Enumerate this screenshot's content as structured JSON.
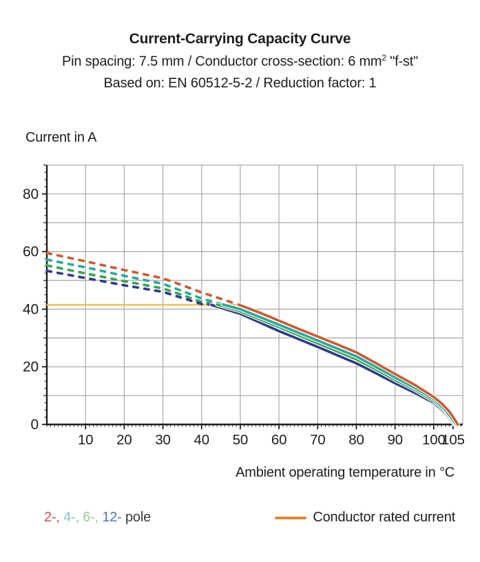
{
  "header": {
    "title": "Current-Carrying Capacity Curve",
    "subtitle_prefix": "Pin spacing: 7.5 mm / Conductor cross-section: 6 mm",
    "subtitle_sup": "2",
    "subtitle_suffix": " \"f-st\"",
    "basis": "Based on: EN 60512-5-2 / Reduction factor: 1"
  },
  "chart_data": {
    "type": "line",
    "title": "Current-Carrying Capacity Curve",
    "xlabel": "Ambient operating temperature in °C",
    "ylabel": "Current in A",
    "xlim": [
      0,
      107.5
    ],
    "ylim": [
      0,
      90
    ],
    "grid": true,
    "x_grid_step": 10,
    "y_grid_step": 10,
    "x_major_ticks": [
      10,
      20,
      30,
      40,
      50,
      60,
      70,
      80,
      90,
      100,
      105
    ],
    "x_minor_step": 1,
    "y_major_ticks": [
      0,
      20,
      40,
      60,
      80
    ],
    "y_minor_step": 2.5,
    "colors": {
      "grid": "#adadad",
      "axis": "#1d1d1d",
      "text": "#1d1d1d",
      "casing": "#ffffff"
    },
    "series": [
      {
        "name": "2-pole",
        "color": "#cf5b30",
        "rated": false,
        "dashed": [
          [
            0,
            59.5
          ],
          [
            10,
            56.6
          ],
          [
            20,
            53.6
          ],
          [
            30,
            50.7
          ],
          [
            35,
            48.3
          ],
          [
            40,
            45.8
          ],
          [
            45,
            43.6
          ],
          [
            49.5,
            41.6
          ]
        ],
        "solid": [
          [
            49.5,
            41.6
          ],
          [
            55,
            38.8
          ],
          [
            60,
            36.0
          ],
          [
            65,
            33.2
          ],
          [
            70,
            30.5
          ],
          [
            75,
            27.8
          ],
          [
            80,
            25.0
          ],
          [
            85,
            21.3
          ],
          [
            90,
            17.5
          ],
          [
            95,
            13.8
          ],
          [
            100,
            9.5
          ],
          [
            102,
            7.3
          ],
          [
            104,
            4.5
          ],
          [
            105.5,
            1.5
          ],
          [
            106.2,
            0
          ]
        ]
      },
      {
        "name": "4-pole",
        "color": "#2ba89f",
        "rated": false,
        "dashed": [
          [
            0,
            57.2
          ],
          [
            10,
            54.5
          ],
          [
            20,
            51.6
          ],
          [
            30,
            48.8
          ],
          [
            35,
            46.3
          ],
          [
            40,
            43.7
          ],
          [
            45.5,
            41.6
          ]
        ],
        "solid": [
          [
            45.5,
            41.6
          ],
          [
            50,
            40.0
          ],
          [
            55,
            37.3
          ],
          [
            60,
            34.6
          ],
          [
            70,
            29.1
          ],
          [
            80,
            23.6
          ],
          [
            85,
            20.0
          ],
          [
            90,
            16.3
          ],
          [
            95,
            12.8
          ],
          [
            100,
            8.8
          ],
          [
            103,
            5.1
          ],
          [
            105.8,
            0
          ]
        ]
      },
      {
        "name": "6-pole",
        "color": "#3aa54a",
        "rated": false,
        "dashed": [
          [
            0,
            55.2
          ],
          [
            10,
            52.4
          ],
          [
            20,
            49.7
          ],
          [
            30,
            47.2
          ],
          [
            35,
            44.9
          ],
          [
            40,
            42.5
          ],
          [
            44,
            41.6
          ]
        ],
        "solid": [
          [
            44,
            41.6
          ],
          [
            50,
            39.3
          ],
          [
            55,
            36.5
          ],
          [
            60,
            33.8
          ],
          [
            70,
            28.2
          ],
          [
            80,
            22.6
          ],
          [
            85,
            19.1
          ],
          [
            90,
            15.5
          ],
          [
            95,
            12.1
          ],
          [
            100,
            8.1
          ],
          [
            103,
            4.6
          ],
          [
            105.6,
            0
          ]
        ]
      },
      {
        "name": "12-pole",
        "color": "#32398f",
        "rated": false,
        "dashed": [
          [
            0,
            53.3
          ],
          [
            10,
            50.8
          ],
          [
            20,
            48.3
          ],
          [
            30,
            46.0
          ],
          [
            35,
            43.9
          ],
          [
            40,
            41.8
          ],
          [
            42.5,
            41.5
          ]
        ],
        "solid": [
          [
            42.5,
            41.5
          ],
          [
            50,
            38.4
          ],
          [
            55,
            35.4
          ],
          [
            60,
            32.4
          ],
          [
            70,
            26.9
          ],
          [
            80,
            21.2
          ],
          [
            85,
            17.8
          ],
          [
            90,
            14.3
          ],
          [
            95,
            11.0
          ],
          [
            100,
            7.5
          ],
          [
            103,
            4.0
          ],
          [
            105.3,
            0
          ]
        ]
      },
      {
        "name": "Conductor rated current",
        "color": "#f1c14f",
        "rated": true,
        "solid": [
          [
            0,
            41.5
          ],
          [
            50,
            41.5
          ]
        ]
      }
    ]
  },
  "legend": {
    "pole_items": [
      {
        "label": "2-",
        "color": "#ce4f49"
      },
      {
        "label": "4-",
        "color": "#8bc7c6"
      },
      {
        "label": "6-",
        "color": "#95cb93"
      },
      {
        "label": "12-",
        "color": "#4478ae"
      }
    ],
    "separator": ", ",
    "pole_suffix": " pole",
    "pole_suffix_color": "#3a3a3a",
    "rated_label": "Conductor rated current",
    "rated_swatch_color": "#e08631"
  }
}
